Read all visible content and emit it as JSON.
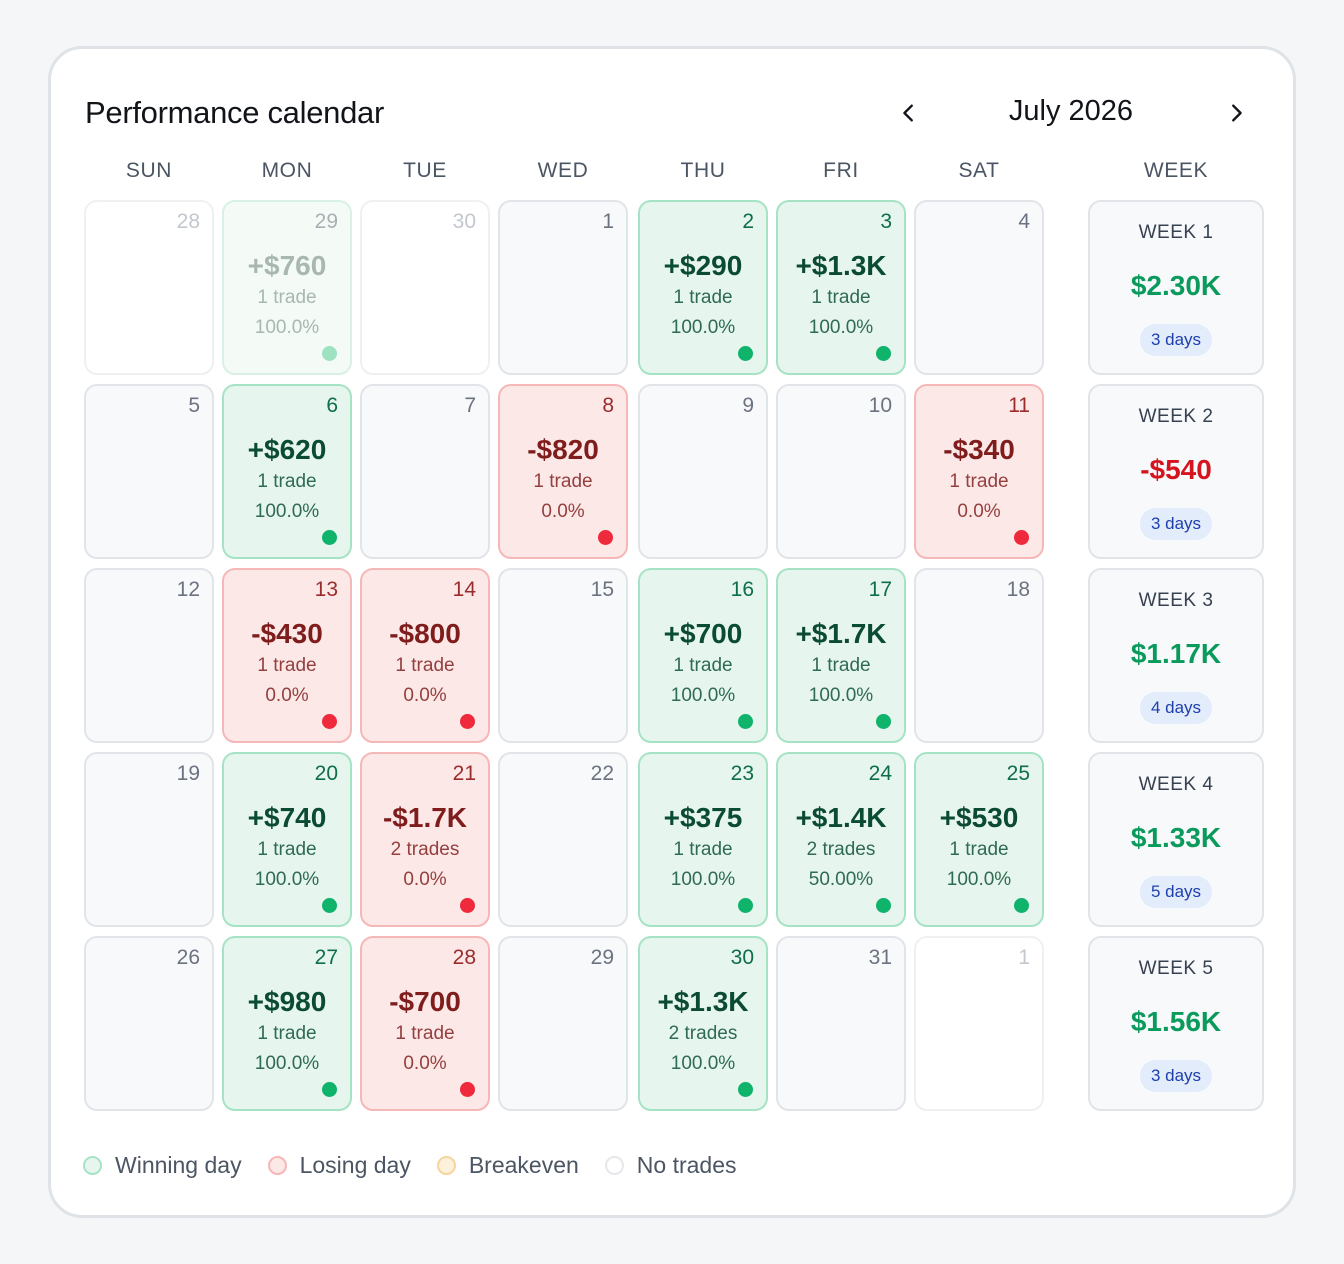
{
  "header": {
    "title": "Performance calendar",
    "month": "July 2026",
    "prev_icon": "chevron-left-icon",
    "next_icon": "chevron-right-icon"
  },
  "weekdays": [
    "SUN",
    "MON",
    "TUE",
    "WED",
    "THU",
    "FRI",
    "SAT"
  ],
  "week_header": "WEEK",
  "days": [
    {
      "day": "28",
      "status": "none",
      "outside": true
    },
    {
      "day": "29",
      "status": "win",
      "outside": true,
      "pnl": "+$760",
      "trades": "1 trade",
      "winrate": "100.0%"
    },
    {
      "day": "30",
      "status": "none",
      "outside": true
    },
    {
      "day": "1",
      "status": "none"
    },
    {
      "day": "2",
      "status": "win",
      "pnl": "+$290",
      "trades": "1 trade",
      "winrate": "100.0%"
    },
    {
      "day": "3",
      "status": "win",
      "pnl": "+$1.3K",
      "trades": "1 trade",
      "winrate": "100.0%"
    },
    {
      "day": "4",
      "status": "none"
    },
    {
      "day": "5",
      "status": "none"
    },
    {
      "day": "6",
      "status": "win",
      "pnl": "+$620",
      "trades": "1 trade",
      "winrate": "100.0%"
    },
    {
      "day": "7",
      "status": "none"
    },
    {
      "day": "8",
      "status": "loss",
      "pnl": "-$820",
      "trades": "1 trade",
      "winrate": "0.0%"
    },
    {
      "day": "9",
      "status": "none"
    },
    {
      "day": "10",
      "status": "none"
    },
    {
      "day": "11",
      "status": "loss",
      "pnl": "-$340",
      "trades": "1 trade",
      "winrate": "0.0%"
    },
    {
      "day": "12",
      "status": "none"
    },
    {
      "day": "13",
      "status": "loss",
      "pnl": "-$430",
      "trades": "1 trade",
      "winrate": "0.0%"
    },
    {
      "day": "14",
      "status": "loss",
      "pnl": "-$800",
      "trades": "1 trade",
      "winrate": "0.0%"
    },
    {
      "day": "15",
      "status": "none"
    },
    {
      "day": "16",
      "status": "win",
      "pnl": "+$700",
      "trades": "1 trade",
      "winrate": "100.0%"
    },
    {
      "day": "17",
      "status": "win",
      "pnl": "+$1.7K",
      "trades": "1 trade",
      "winrate": "100.0%"
    },
    {
      "day": "18",
      "status": "none"
    },
    {
      "day": "19",
      "status": "none"
    },
    {
      "day": "20",
      "status": "win",
      "pnl": "+$740",
      "trades": "1 trade",
      "winrate": "100.0%"
    },
    {
      "day": "21",
      "status": "loss",
      "pnl": "-$1.7K",
      "trades": "2 trades",
      "winrate": "0.0%"
    },
    {
      "day": "22",
      "status": "none"
    },
    {
      "day": "23",
      "status": "win",
      "pnl": "+$375",
      "trades": "1 trade",
      "winrate": "100.0%"
    },
    {
      "day": "24",
      "status": "win",
      "pnl": "+$1.4K",
      "trades": "2 trades",
      "winrate": "50.00%"
    },
    {
      "day": "25",
      "status": "win",
      "pnl": "+$530",
      "trades": "1 trade",
      "winrate": "100.0%"
    },
    {
      "day": "26",
      "status": "none"
    },
    {
      "day": "27",
      "status": "win",
      "pnl": "+$980",
      "trades": "1 trade",
      "winrate": "100.0%"
    },
    {
      "day": "28",
      "status": "loss",
      "pnl": "-$700",
      "trades": "1 trade",
      "winrate": "0.0%"
    },
    {
      "day": "29",
      "status": "none"
    },
    {
      "day": "30",
      "status": "win",
      "pnl": "+$1.3K",
      "trades": "2 trades",
      "winrate": "100.0%"
    },
    {
      "day": "31",
      "status": "none"
    },
    {
      "day": "1",
      "status": "none",
      "outside": true
    }
  ],
  "weeks": [
    {
      "label": "WEEK 1",
      "total": "$2.30K",
      "sign": "pos",
      "days": "3 days"
    },
    {
      "label": "WEEK 2",
      "total": "-$540",
      "sign": "neg",
      "days": "3 days"
    },
    {
      "label": "WEEK 3",
      "total": "$1.17K",
      "sign": "pos",
      "days": "4 days"
    },
    {
      "label": "WEEK 4",
      "total": "$1.33K",
      "sign": "pos",
      "days": "5 days"
    },
    {
      "label": "WEEK 5",
      "total": "$1.56K",
      "sign": "pos",
      "days": "3 days"
    }
  ],
  "legend": [
    {
      "label": "Winning day",
      "type": "win"
    },
    {
      "label": "Losing day",
      "type": "loss"
    },
    {
      "label": "Breakeven",
      "type": "be"
    },
    {
      "label": "No trades",
      "type": "none"
    }
  ],
  "colors": {
    "win_bg": "#e6f6ee",
    "win_dot": "#0fb36b",
    "loss_bg": "#fde8e8",
    "loss_dot": "#ee2a3c",
    "breakeven_bg": "#fdf1dc",
    "week_pos": "#099a5c",
    "week_neg": "#d5141f",
    "days_badge_bg": "#e3ecfb"
  }
}
